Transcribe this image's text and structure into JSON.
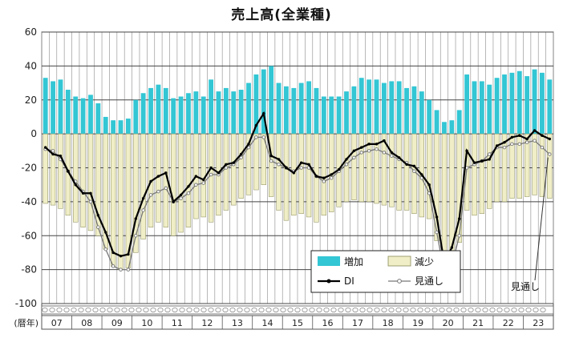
{
  "chart_data": {
    "type": "bar+line",
    "title": "売上高(全業種)",
    "xlabel": "(暦年)",
    "ylabel": "",
    "ylim": [
      -100,
      60
    ],
    "yticks": [
      60,
      40,
      20,
      0,
      -20,
      -40,
      -60,
      -80,
      -100
    ],
    "year_labels": [
      "07",
      "08",
      "09",
      "10",
      "11",
      "12",
      "13",
      "14",
      "15",
      "16",
      "17",
      "18",
      "19",
      "20",
      "21",
      "22",
      "23"
    ],
    "x": [
      "07Q1",
      "07Q2",
      "07Q3",
      "07Q4",
      "08Q1",
      "08Q2",
      "08Q3",
      "08Q4",
      "09Q1",
      "09Q2",
      "09Q3",
      "09Q4",
      "10Q1",
      "10Q2",
      "10Q3",
      "10Q4",
      "11Q1",
      "11Q2",
      "11Q3",
      "11Q4",
      "12Q1",
      "12Q2",
      "12Q3",
      "12Q4",
      "13Q1",
      "13Q2",
      "13Q3",
      "13Q4",
      "14Q1",
      "14Q2",
      "14Q3",
      "14Q4",
      "15Q1",
      "15Q2",
      "15Q3",
      "15Q4",
      "16Q1",
      "16Q2",
      "16Q3",
      "16Q4",
      "17Q1",
      "17Q2",
      "17Q3",
      "17Q4",
      "18Q1",
      "18Q2",
      "18Q3",
      "18Q4",
      "19Q1",
      "19Q2",
      "19Q3",
      "19Q4",
      "20Q1",
      "20Q2",
      "20Q3",
      "20Q4",
      "21Q1",
      "21Q2",
      "21Q3",
      "21Q4",
      "22Q1",
      "22Q2",
      "22Q3",
      "22Q4",
      "23Q1",
      "23Q2",
      "23Q3",
      "23Q4"
    ],
    "series": [
      {
        "name": "増加",
        "kind": "bar",
        "color": "#33c6d4",
        "values": [
          33,
          31,
          32,
          26,
          22,
          21,
          23,
          18,
          10,
          8,
          8,
          9,
          20,
          24,
          27,
          29,
          27,
          21,
          22,
          24,
          25,
          22,
          32,
          25,
          27,
          25,
          26,
          30,
          35,
          38,
          40,
          30,
          28,
          27,
          30,
          31,
          27,
          22,
          22,
          22,
          25,
          28,
          33,
          32,
          32,
          30,
          31,
          31,
          27,
          28,
          25,
          20,
          14,
          7,
          8,
          14,
          35,
          31,
          31,
          29,
          33,
          35,
          36,
          37,
          34,
          38,
          36,
          32
        ]
      },
      {
        "name": "減少",
        "kind": "bar",
        "color": "#efeec6",
        "values": [
          -41,
          -42,
          -44,
          -48,
          -52,
          -55,
          -57,
          -60,
          -68,
          -78,
          -80,
          -79,
          -70,
          -62,
          -55,
          -52,
          -55,
          -60,
          -58,
          -55,
          -50,
          -49,
          -52,
          -48,
          -45,
          -42,
          -38,
          -36,
          -33,
          -30,
          -37,
          -45,
          -51,
          -48,
          -47,
          -49,
          -52,
          -48,
          -46,
          -43,
          -40,
          -39,
          -40,
          -40,
          -41,
          -42,
          -43,
          -45,
          -45,
          -47,
          -49,
          -50,
          -63,
          -83,
          -75,
          -64,
          -45,
          -48,
          -47,
          -44,
          -40,
          -40,
          -38,
          -38,
          -37,
          -36,
          -37,
          -38
        ]
      },
      {
        "name": "DI",
        "kind": "line",
        "color": "#000000",
        "values": [
          -8,
          -12,
          -13,
          -22,
          -30,
          -35,
          -35,
          -48,
          -58,
          -70,
          -72,
          -71,
          -50,
          -38,
          -28,
          -25,
          -23,
          -40,
          -36,
          -31,
          -25,
          -27,
          -20,
          -23,
          -18,
          -17,
          -12,
          -6,
          5,
          12,
          -13,
          -15,
          -20,
          -23,
          -17,
          -18,
          -25,
          -26,
          -24,
          -21,
          -15,
          -10,
          -8,
          -6,
          -6,
          -4,
          -11,
          -14,
          -18,
          -19,
          -24,
          -30,
          -49,
          -76,
          -67,
          -50,
          -10,
          -17,
          -16,
          -15,
          -7,
          -5,
          -2,
          -1,
          -3,
          2,
          -1,
          -3
        ]
      },
      {
        "name": "見通し",
        "kind": "line",
        "color": "#777777",
        "values": [
          -9,
          -10,
          -15,
          -22,
          -28,
          -34,
          -40,
          -55,
          -68,
          -78,
          -80,
          -80,
          -60,
          -45,
          -36,
          -34,
          -32,
          -40,
          -38,
          -35,
          -30,
          -29,
          -24,
          -24,
          -20,
          -18,
          -14,
          -8,
          -2,
          -2,
          -16,
          -18,
          -20,
          -22,
          -20,
          -20,
          -25,
          -28,
          -26,
          -22,
          -18,
          -14,
          -11,
          -10,
          -9,
          -11,
          -13,
          -15,
          -17,
          -22,
          -26,
          -35,
          -58,
          -82,
          -78,
          -60,
          -20,
          -18,
          -16,
          -12,
          -8,
          -8,
          -6,
          -6,
          -5,
          -4,
          -8,
          -12
        ]
      }
    ],
    "annotations": [
      "見通し"
    ],
    "legend_position": "bottom-right",
    "grid": true
  }
}
